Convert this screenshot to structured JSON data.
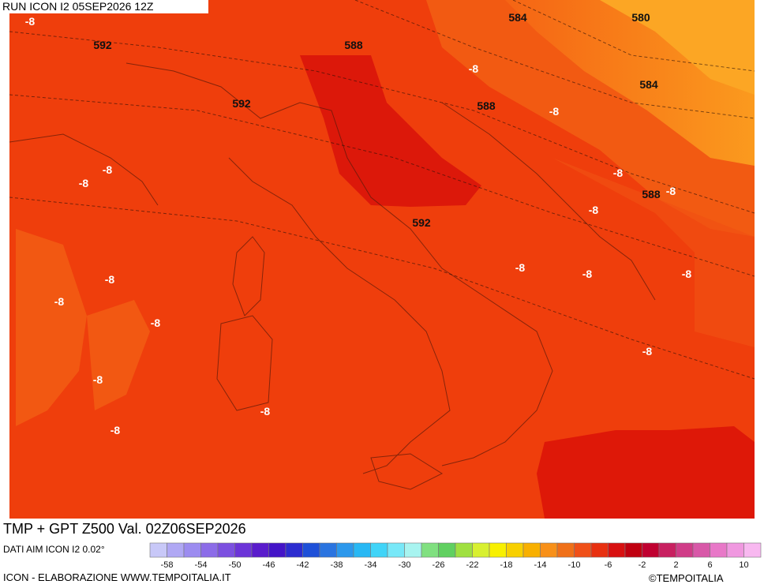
{
  "header": {
    "run": "RUN ICON I2 05SEP2026 12Z"
  },
  "map": {
    "geopotential_labels": [
      592,
      588,
      584,
      580,
      592,
      588,
      584,
      588,
      592
    ],
    "temperature_labels": [
      -8,
      -8,
      -8,
      -8,
      -8,
      -8,
      -8,
      -8,
      -8,
      -8,
      -8,
      -8,
      -8,
      -8,
      -8,
      -8,
      -8,
      -8
    ]
  },
  "footer": {
    "title": "TMP + GPT Z500 Val. 02Z06SEP2026",
    "data_source": "DATI AIM ICON I2 0.02°",
    "credit": "ICON - ELABORAZIONE WWW.TEMPOITALIA.IT",
    "copyright": "©TEMPOITALIA"
  },
  "colorbar": {
    "ticks": [
      -58,
      -54,
      -50,
      -46,
      -42,
      -38,
      -34,
      -30,
      -26,
      -22,
      -18,
      -14,
      -10,
      -6,
      -2,
      2,
      6,
      10
    ],
    "colors": [
      "#c8c8f8",
      "#b0a8f4",
      "#9c8cf0",
      "#8c6ce8",
      "#7c50e0",
      "#6c34d8",
      "#5a1ccc",
      "#4414c8",
      "#2c2cd0",
      "#1e50d8",
      "#2a74e0",
      "#2c98ec",
      "#28b8f4",
      "#40d4f8",
      "#78e8f8",
      "#a8f4f0",
      "#80e080",
      "#60d060",
      "#a0e040",
      "#d8f030",
      "#f8f000",
      "#f8d000",
      "#f8b000",
      "#f89018",
      "#f07018",
      "#f05018",
      "#e83010",
      "#d81010",
      "#c00010",
      "#c00030",
      "#c82060",
      "#d03c88",
      "#d858a8",
      "#e878c8",
      "#f098e0",
      "#f8b8f0"
    ]
  }
}
